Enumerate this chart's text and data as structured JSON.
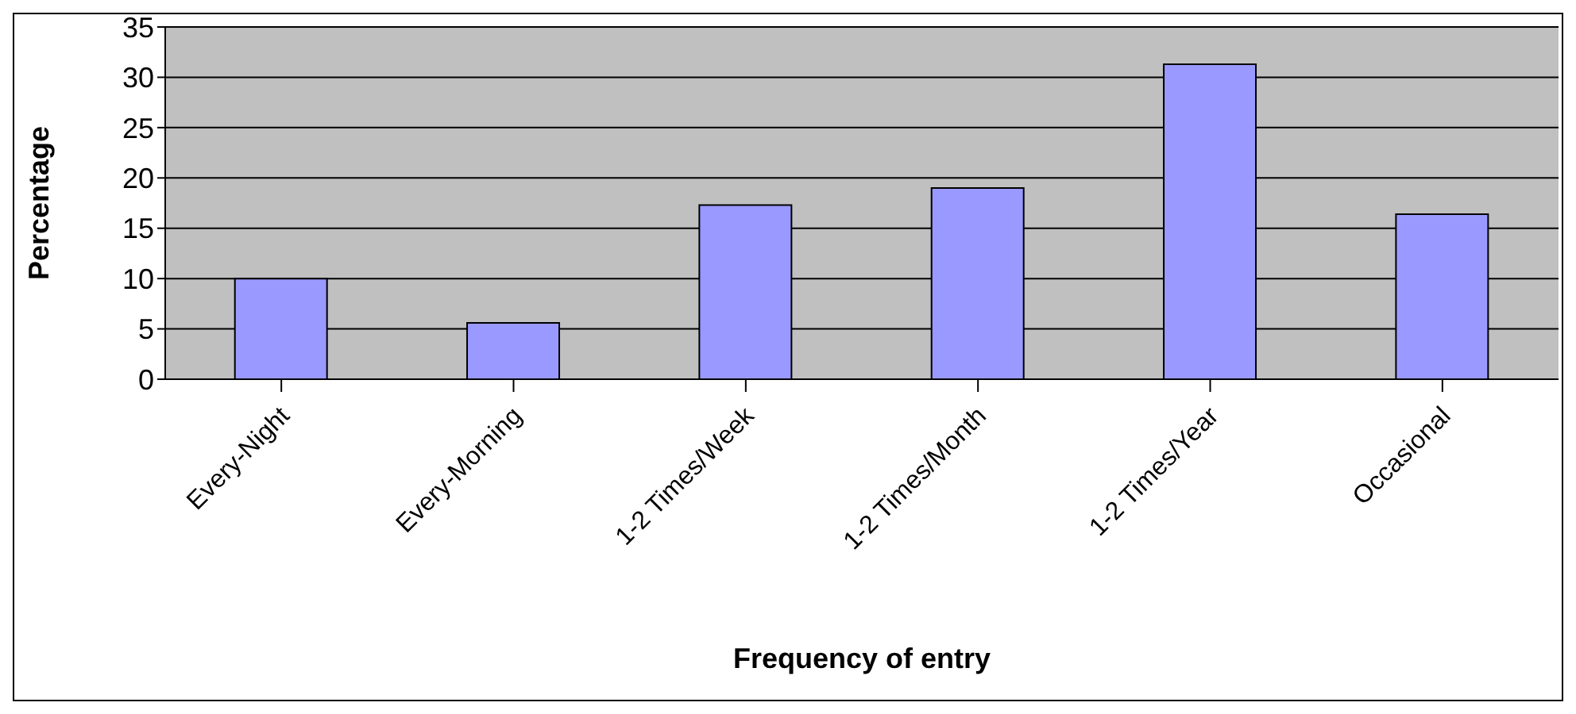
{
  "chart_data": {
    "type": "bar",
    "xlabel": "Frequency of entry",
    "ylabel": "Percentage",
    "categories": [
      "Every-Night",
      "Every-Morning",
      "1-2 Times/Week",
      "1-2 Times/Month",
      "1-2 Times/Year",
      "Occasional"
    ],
    "values": [
      10,
      5.6,
      17.3,
      19,
      31.3,
      16.4
    ],
    "color": "#9999ff",
    "ylim": [
      0,
      35
    ],
    "yticks": [
      0,
      5,
      10,
      15,
      20,
      25,
      30,
      35
    ],
    "grid": "y"
  }
}
